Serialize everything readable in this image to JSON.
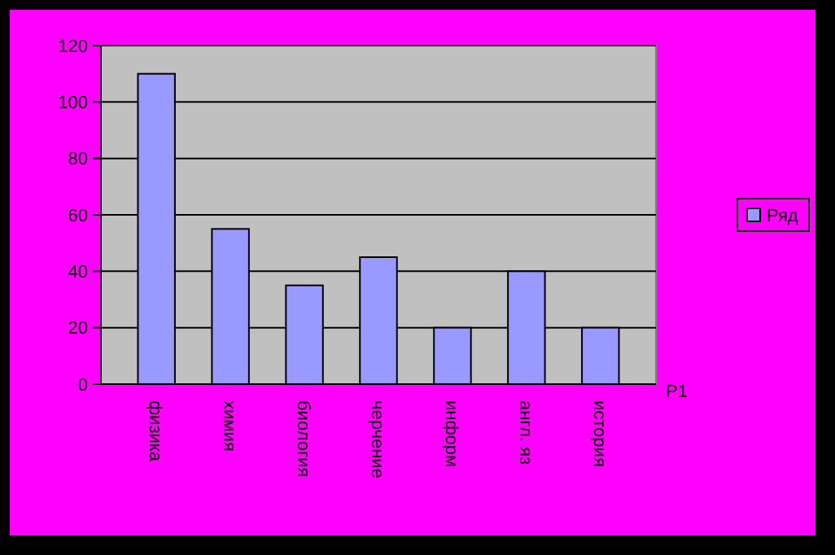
{
  "chart_data": {
    "type": "bar",
    "categories": [
      "физика",
      "химия",
      "биология",
      "черчение",
      "информ",
      "англ. яз",
      "история"
    ],
    "series": [
      {
        "name": "Ряд",
        "color": "#9999ff",
        "values": [
          110,
          55,
          35,
          45,
          20,
          40,
          20
        ]
      }
    ],
    "ylim": [
      0,
      120
    ],
    "yticks": [
      0,
      20,
      40,
      60,
      80,
      100,
      120
    ],
    "grid": "y",
    "legend": "right",
    "annotations": [
      "Р1"
    ]
  }
}
